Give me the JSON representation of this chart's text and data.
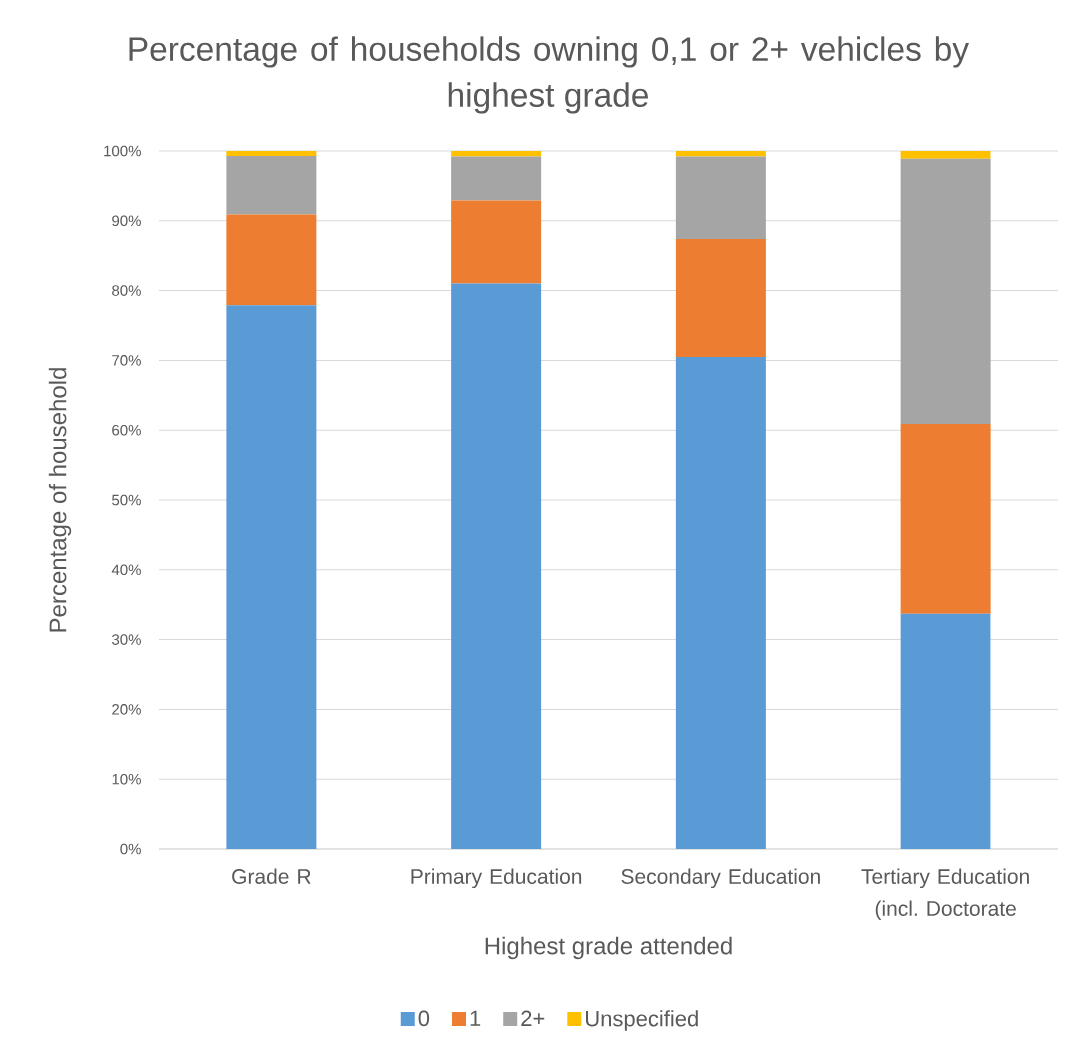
{
  "chart_data": {
    "type": "bar",
    "stacked": true,
    "title": "Percentage of households owning 0,1 or 2+ vehicles by highest grade",
    "xlabel": "Highest grade attended",
    "ylabel": "Percentage of household",
    "categories": [
      "Grade R",
      "Primary Education",
      "Secondary Education",
      "Tertiary Education (incl. Doctorate"
    ],
    "series": [
      {
        "name": "0",
        "color": "#5b9bd5",
        "values": [
          77.9,
          81.0,
          70.5,
          33.7
        ]
      },
      {
        "name": "1",
        "color": "#ed7d31",
        "values": [
          13.0,
          11.9,
          16.9,
          27.2
        ]
      },
      {
        "name": "2+",
        "color": "#a5a5a5",
        "values": [
          8.4,
          6.3,
          11.8,
          38.0
        ]
      },
      {
        "name": "Unspecified",
        "color": "#ffc000",
        "values": [
          0.7,
          0.8,
          0.8,
          1.1
        ]
      }
    ],
    "ylim": [
      0,
      100
    ],
    "yticks": [
      {
        "value": 0,
        "label": "0%"
      },
      {
        "value": 10,
        "label": "10%"
      },
      {
        "value": 20,
        "label": "20%"
      },
      {
        "value": 30,
        "label": "30%"
      },
      {
        "value": 40,
        "label": "40%"
      },
      {
        "value": 50,
        "label": "50%"
      },
      {
        "value": 60,
        "label": "60%"
      },
      {
        "value": 70,
        "label": "70%"
      },
      {
        "value": 80,
        "label": "80%"
      },
      {
        "value": 90,
        "label": "90%"
      },
      {
        "value": 100,
        "label": "100%"
      }
    ],
    "grid": "y",
    "legend": "bottom"
  }
}
